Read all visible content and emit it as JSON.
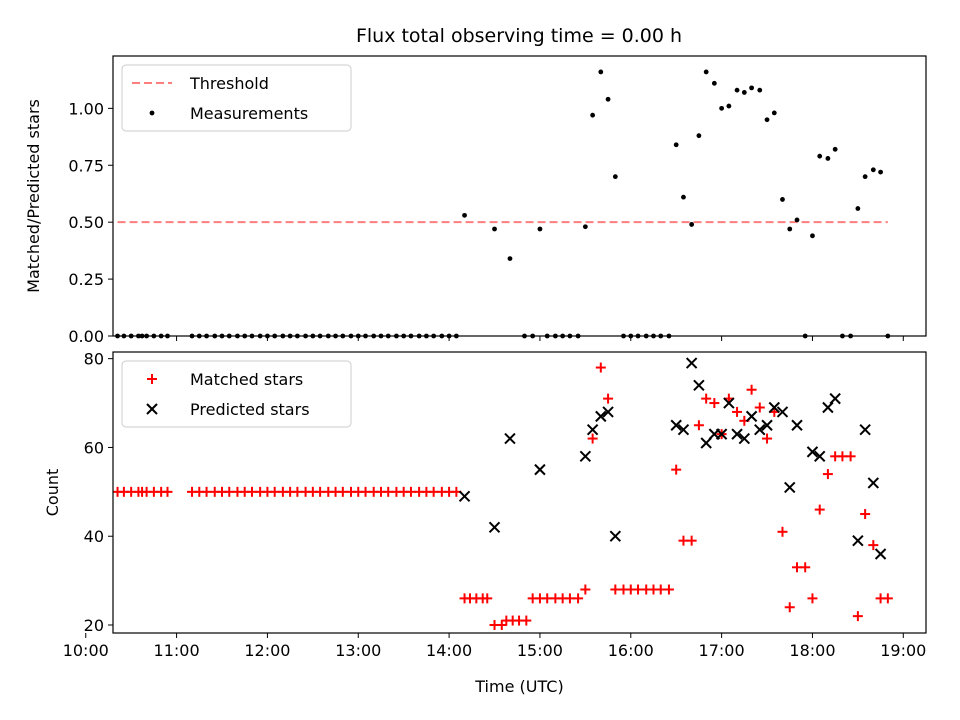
{
  "chart_data": [
    {
      "type": "scatter",
      "title": "Flux total observing time = 0.00 h",
      "ylabel": "Matched/Predicted stars",
      "xlabel": "",
      "xlim": [
        10.3,
        19.25
      ],
      "ylim": [
        0.0,
        1.23
      ],
      "xticks": [
        "10:00",
        "11:00",
        "12:00",
        "13:00",
        "14:00",
        "15:00",
        "16:00",
        "17:00",
        "18:00",
        "19:00"
      ],
      "xtick_values": [
        10,
        11,
        12,
        13,
        14,
        15,
        16,
        17,
        18,
        19
      ],
      "show_xtick_labels": false,
      "yticks": [
        "0.00",
        "0.25",
        "0.50",
        "0.75",
        "1.00"
      ],
      "ytick_values": [
        0.0,
        0.25,
        0.5,
        0.75,
        1.0
      ],
      "grid": false,
      "legend_position": "top-left",
      "threshold": {
        "name": "Threshold",
        "value": 0.5,
        "x": [
          10.35,
          18.83
        ],
        "color": "#ff7f7f"
      },
      "series": [
        {
          "name": "Measurements",
          "color": "#000000",
          "x": [
            10.35,
            10.42,
            10.5,
            10.58,
            10.62,
            10.67,
            10.75,
            10.83,
            10.9,
            11.17,
            11.25,
            11.33,
            11.42,
            11.5,
            11.58,
            11.67,
            11.75,
            11.83,
            11.92,
            12.0,
            12.08,
            12.17,
            12.25,
            12.33,
            12.42,
            12.5,
            12.58,
            12.67,
            12.75,
            12.83,
            12.92,
            13.0,
            13.08,
            13.17,
            13.25,
            13.33,
            13.42,
            13.5,
            13.58,
            13.67,
            13.75,
            13.83,
            13.92,
            14.0,
            14.08,
            14.17,
            14.5,
            14.67,
            14.83,
            14.92,
            15.0,
            15.08,
            15.17,
            15.25,
            15.33,
            15.42,
            15.5,
            15.58,
            15.67,
            15.75,
            15.83,
            15.92,
            16.0,
            16.08,
            16.17,
            16.25,
            16.33,
            16.42,
            16.5,
            16.58,
            16.67,
            16.75,
            16.83,
            16.92,
            17.0,
            17.08,
            17.17,
            17.25,
            17.33,
            17.42,
            17.5,
            17.58,
            17.67,
            17.75,
            17.83,
            17.92,
            18.0,
            18.08,
            18.17,
            18.25,
            18.33,
            18.42,
            18.5,
            18.58,
            18.67,
            18.75,
            18.83
          ],
          "y": [
            0,
            0,
            0,
            0,
            0,
            0,
            0,
            0,
            0,
            0,
            0,
            0,
            0,
            0,
            0,
            0,
            0,
            0,
            0,
            0,
            0,
            0,
            0,
            0,
            0,
            0,
            0,
            0,
            0,
            0,
            0,
            0,
            0,
            0,
            0,
            0,
            0,
            0,
            0,
            0,
            0,
            0,
            0,
            0,
            0,
            0.53,
            0.47,
            0.34,
            0,
            0,
            0.47,
            0,
            0,
            0,
            0,
            0,
            0.48,
            0.97,
            1.16,
            1.04,
            0.7,
            0,
            0,
            0,
            0,
            0,
            0,
            0,
            0.84,
            0.61,
            0.49,
            0.88,
            1.16,
            1.11,
            1.0,
            1.01,
            1.08,
            1.07,
            1.09,
            1.08,
            0.95,
            0.98,
            0.6,
            0.47,
            0.51,
            0,
            0.44,
            0.79,
            0.78,
            0.82,
            0,
            0,
            0.56,
            0.7,
            0.73,
            0.72,
            0
          ]
        }
      ]
    },
    {
      "type": "scatter",
      "title": "",
      "ylabel": "Count",
      "xlabel": "Time (UTC)",
      "xlim": [
        10.3,
        19.25
      ],
      "ylim": [
        18.2,
        81.5
      ],
      "xticks": [
        "10:00",
        "11:00",
        "12:00",
        "13:00",
        "14:00",
        "15:00",
        "16:00",
        "17:00",
        "18:00",
        "19:00"
      ],
      "xtick_values": [
        10,
        11,
        12,
        13,
        14,
        15,
        16,
        17,
        18,
        19
      ],
      "show_xtick_labels": true,
      "yticks": [
        "20",
        "40",
        "60",
        "80"
      ],
      "ytick_values": [
        20,
        40,
        60,
        80
      ],
      "grid": false,
      "legend_position": "top-left",
      "series": [
        {
          "name": "Matched stars",
          "marker": "plus",
          "color": "#ff0000",
          "x": [
            10.35,
            10.42,
            10.5,
            10.58,
            10.62,
            10.67,
            10.75,
            10.83,
            10.9,
            11.17,
            11.25,
            11.33,
            11.42,
            11.5,
            11.58,
            11.67,
            11.75,
            11.83,
            11.92,
            12.0,
            12.08,
            12.17,
            12.25,
            12.33,
            12.42,
            12.5,
            12.58,
            12.67,
            12.75,
            12.83,
            12.92,
            13.0,
            13.08,
            13.17,
            13.25,
            13.33,
            13.42,
            13.5,
            13.58,
            13.67,
            13.75,
            13.83,
            13.92,
            14.0,
            14.08,
            14.17,
            14.23,
            14.3,
            14.37,
            14.42,
            14.5,
            14.58,
            14.63,
            14.7,
            14.77,
            14.85,
            14.92,
            15.0,
            15.08,
            15.17,
            15.25,
            15.33,
            15.42,
            15.5,
            15.58,
            15.67,
            15.75,
            15.83,
            15.92,
            16.0,
            16.08,
            16.17,
            16.25,
            16.33,
            16.42,
            16.5,
            16.58,
            16.67,
            16.75,
            16.83,
            16.92,
            17.0,
            17.08,
            17.17,
            17.25,
            17.33,
            17.42,
            17.5,
            17.58,
            17.67,
            17.75,
            17.83,
            17.92,
            18.0,
            18.08,
            18.17,
            18.25,
            18.33,
            18.42,
            18.5,
            18.58,
            18.67,
            18.75,
            18.83
          ],
          "y": [
            50,
            50,
            50,
            50,
            50,
            50,
            50,
            50,
            50,
            50,
            50,
            50,
            50,
            50,
            50,
            50,
            50,
            50,
            50,
            50,
            50,
            50,
            50,
            50,
            50,
            50,
            50,
            50,
            50,
            50,
            50,
            50,
            50,
            50,
            50,
            50,
            50,
            50,
            50,
            50,
            50,
            50,
            50,
            50,
            50,
            26,
            26,
            26,
            26,
            26,
            20,
            20,
            21,
            21,
            21,
            21,
            26,
            26,
            26,
            26,
            26,
            26,
            26,
            28,
            62,
            78,
            71,
            28,
            28,
            28,
            28,
            28,
            28,
            28,
            28,
            55,
            39,
            39,
            65,
            71,
            70,
            63,
            71,
            68,
            66,
            73,
            69,
            62,
            68,
            41,
            24,
            33,
            33,
            26,
            46,
            54,
            58,
            58,
            58,
            22,
            45,
            38,
            26,
            26
          ]
        },
        {
          "name": "Predicted stars",
          "marker": "x",
          "color": "#000000",
          "x": [
            14.17,
            14.5,
            14.67,
            15.0,
            15.5,
            15.58,
            15.67,
            15.75,
            15.83,
            16.5,
            16.58,
            16.67,
            16.75,
            16.83,
            16.92,
            17.0,
            17.08,
            17.17,
            17.25,
            17.33,
            17.42,
            17.5,
            17.58,
            17.67,
            17.75,
            17.83,
            18.0,
            18.08,
            18.17,
            18.25,
            18.5,
            18.58,
            18.67,
            18.75
          ],
          "y": [
            49,
            42,
            62,
            55,
            58,
            64,
            67,
            68,
            40,
            65,
            64,
            79,
            74,
            61,
            63,
            63,
            70,
            63,
            62,
            67,
            64,
            65,
            69,
            68,
            51,
            65,
            59,
            58,
            69,
            71,
            39,
            64,
            52,
            36
          ]
        }
      ]
    }
  ]
}
